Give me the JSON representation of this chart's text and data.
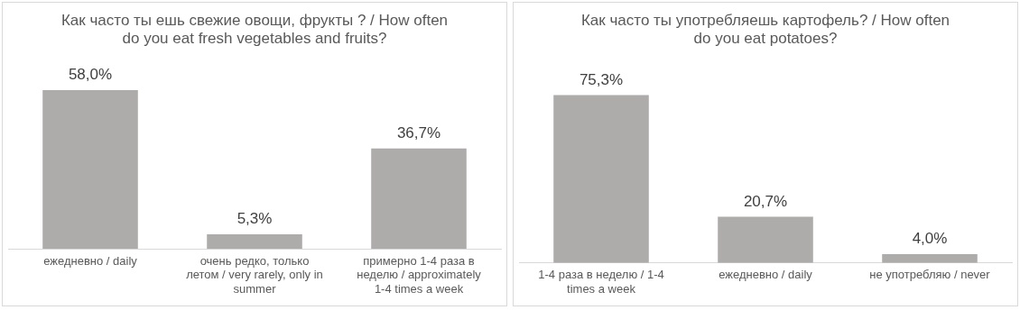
{
  "chart_data": [
    {
      "type": "bar",
      "title": "Как часто ты ешь свежие овощи, фрукты ? / How often do you eat fresh vegetables and fruits?",
      "categories": [
        "ежедневно / daily",
        "очень редко, только летом / very rarely, only in summer",
        "примерно 1-4 раза в неделю / approximately 1-4 times a week"
      ],
      "values": [
        58.0,
        5.3,
        36.7
      ],
      "value_labels": [
        "58,0%",
        "5,3%",
        "36,7%"
      ],
      "color": "#aeabab",
      "grid": false,
      "legend": false,
      "tick_labels": "x"
    },
    {
      "type": "bar",
      "title": "Как часто ты употребляешь картофель? / How often do you eat potatoes?",
      "categories": [
        "1-4 раза в неделю / 1-4 times a week",
        "ежедневно / daily",
        "не употребляю / never"
      ],
      "values": [
        75.3,
        20.7,
        4.0
      ],
      "value_labels": [
        "75,3%",
        "20,7%",
        "4,0%"
      ],
      "color": "#aeabab",
      "grid": false,
      "legend": false,
      "tick_labels": "x"
    }
  ]
}
